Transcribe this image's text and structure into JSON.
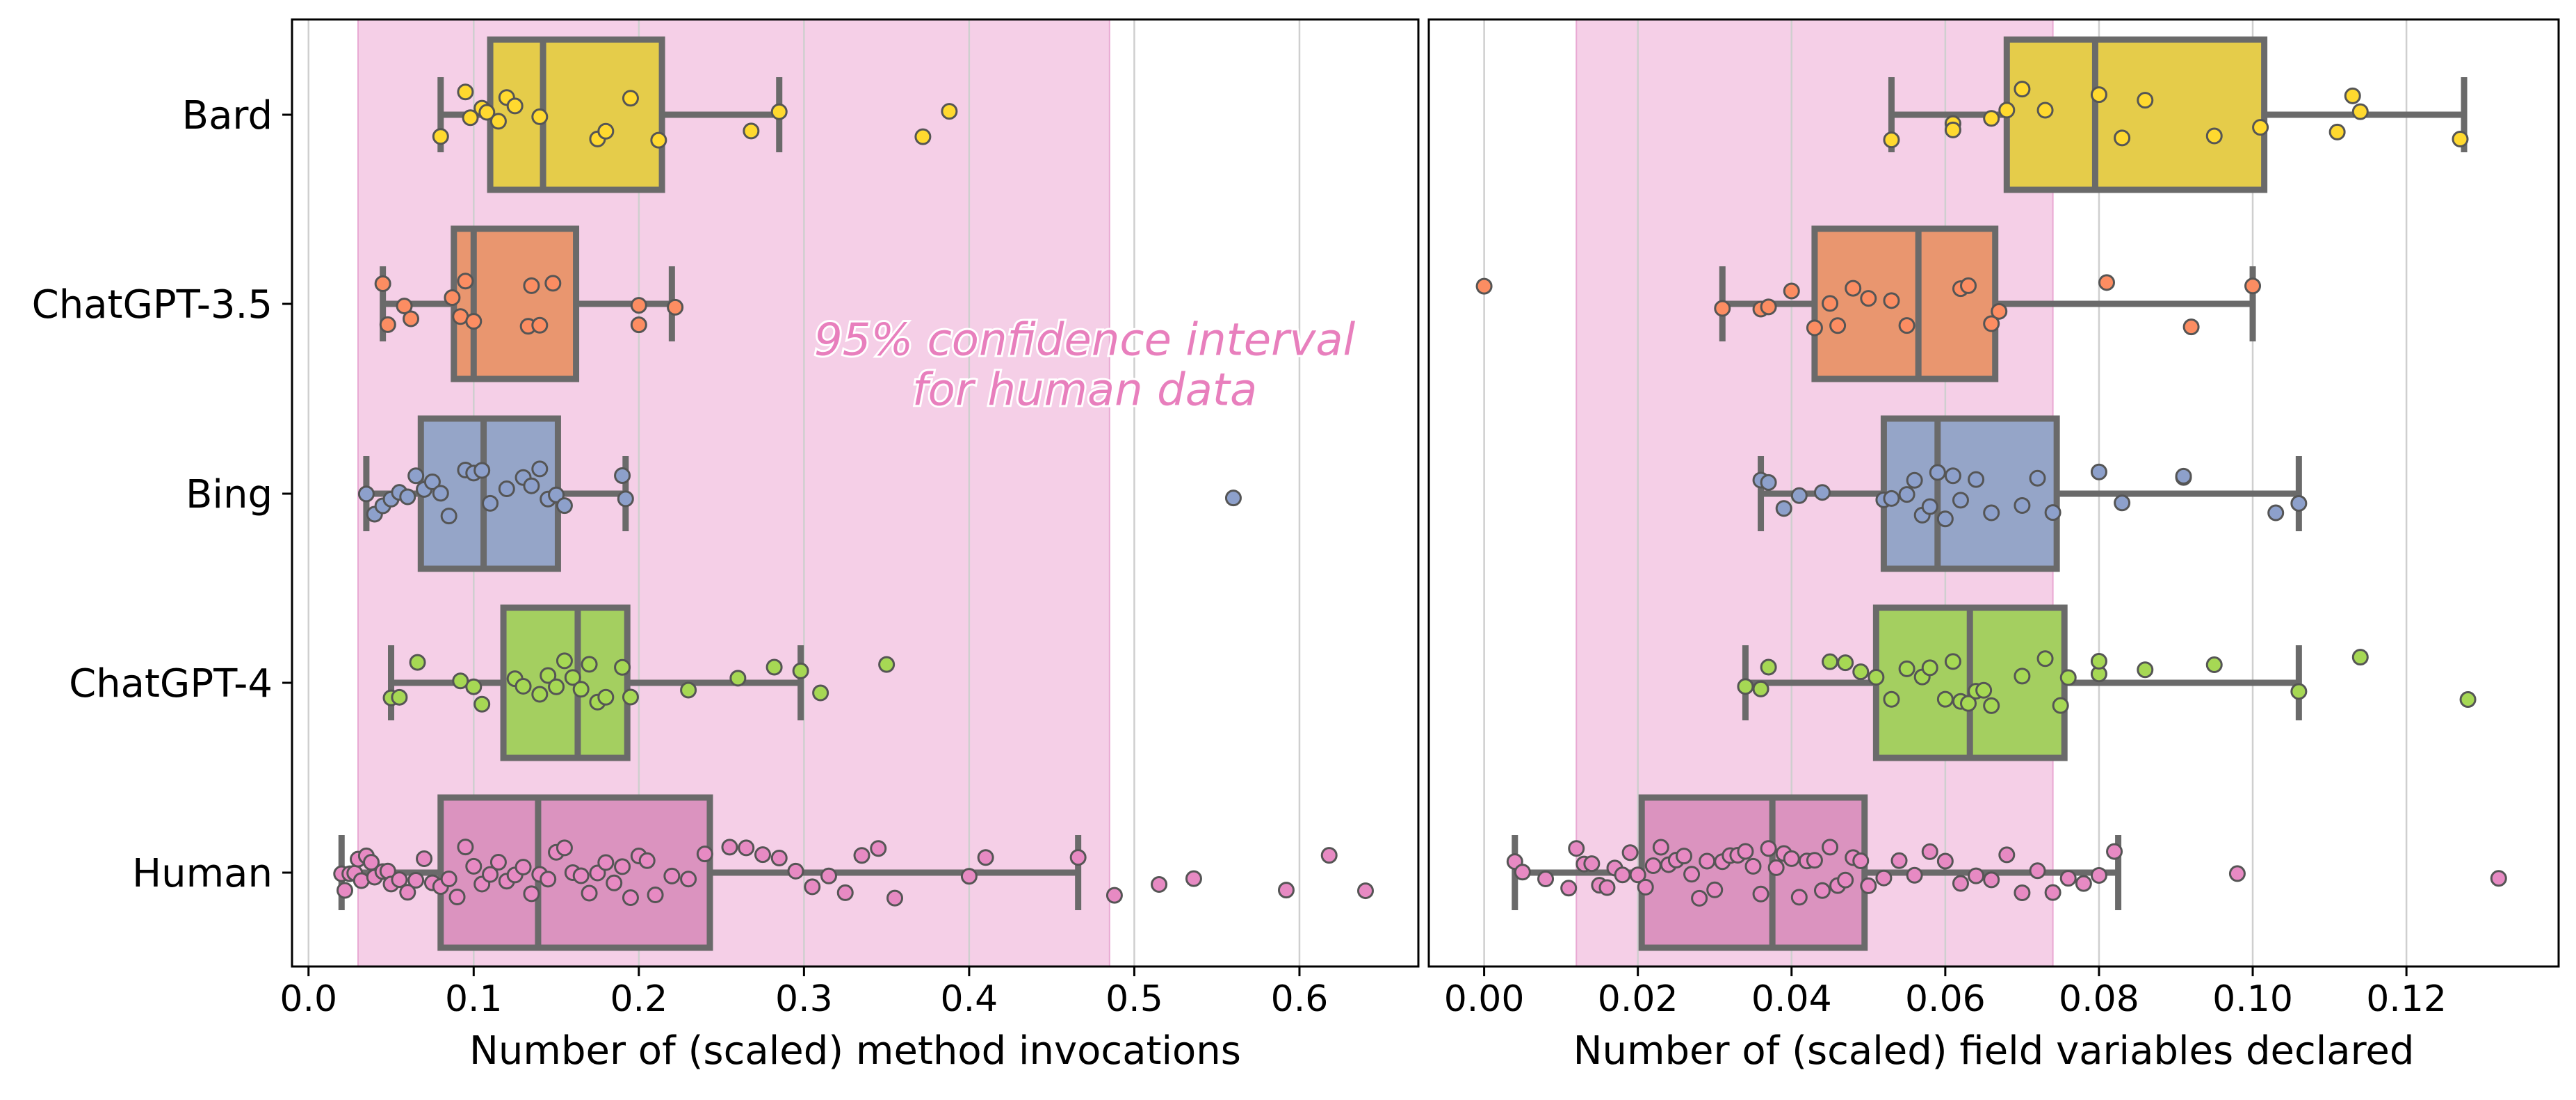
{
  "chart_data": [
    {
      "type": "box",
      "orientation": "horizontal",
      "xlabel": "Number of (scaled) method invocations",
      "ylabel": "",
      "xlim": [
        -0.01,
        0.672
      ],
      "xticks": [
        0.0,
        0.1,
        0.2,
        0.3,
        0.4,
        0.5,
        0.6
      ],
      "xtick_labels": [
        "0.0",
        "0.1",
        "0.2",
        "0.3",
        "0.4",
        "0.5",
        "0.6"
      ],
      "grid": "vertical",
      "categories": [
        "Bard",
        "ChatGPT-3.5",
        "Bing",
        "ChatGPT-4",
        "Human"
      ],
      "shaded_band": {
        "from": 0.03,
        "to": 0.485,
        "color": "#f5cfe7"
      },
      "annotation": {
        "lines": [
          "95% confidence interval",
          "for human data"
        ],
        "x": 0.47,
        "row": 1.27,
        "color": "#e87fbd"
      },
      "boxes": [
        {
          "category": "Bard",
          "color": "#e5cc4a",
          "point_color": "#ffd92f",
          "whisker_low": 0.08,
          "q1": 0.11,
          "median": 0.142,
          "q3": 0.214,
          "whisker_high": 0.285,
          "points": [
            0.08,
            0.095,
            0.098,
            0.105,
            0.108,
            0.115,
            0.12,
            0.125,
            0.14,
            0.175,
            0.18,
            0.195,
            0.212,
            0.268,
            0.285,
            0.372,
            0.388
          ]
        },
        {
          "category": "ChatGPT-3.5",
          "color": "#e9966f",
          "point_color": "#fc8d62",
          "whisker_low": 0.045,
          "q1": 0.088,
          "median": 0.1,
          "q3": 0.162,
          "whisker_high": 0.22,
          "points": [
            0.045,
            0.048,
            0.058,
            0.062,
            0.087,
            0.092,
            0.095,
            0.1,
            0.133,
            0.135,
            0.14,
            0.148,
            0.2,
            0.2,
            0.222
          ]
        },
        {
          "category": "Bing",
          "color": "#95a5c8",
          "point_color": "#8da0cb",
          "whisker_low": 0.035,
          "q1": 0.068,
          "median": 0.106,
          "q3": 0.151,
          "whisker_high": 0.192,
          "points": [
            0.035,
            0.04,
            0.045,
            0.05,
            0.055,
            0.06,
            0.065,
            0.07,
            0.075,
            0.08,
            0.085,
            0.095,
            0.1,
            0.105,
            0.11,
            0.12,
            0.13,
            0.135,
            0.14,
            0.145,
            0.15,
            0.155,
            0.19,
            0.192,
            0.56
          ]
        },
        {
          "category": "ChatGPT-4",
          "color": "#a4cf60",
          "point_color": "#a6d854",
          "whisker_low": 0.05,
          "q1": 0.118,
          "median": 0.163,
          "q3": 0.193,
          "whisker_high": 0.298,
          "points": [
            0.05,
            0.055,
            0.066,
            0.092,
            0.1,
            0.105,
            0.125,
            0.13,
            0.14,
            0.145,
            0.15,
            0.155,
            0.16,
            0.165,
            0.17,
            0.175,
            0.18,
            0.19,
            0.195,
            0.23,
            0.26,
            0.282,
            0.298,
            0.31,
            0.35
          ]
        },
        {
          "category": "Human",
          "color": "#db93bf",
          "point_color": "#e78ac3",
          "whisker_low": 0.02,
          "q1": 0.08,
          "median": 0.139,
          "q3": 0.243,
          "whisker_high": 0.466,
          "points": [
            0.02,
            0.022,
            0.025,
            0.028,
            0.03,
            0.032,
            0.035,
            0.038,
            0.04,
            0.045,
            0.048,
            0.05,
            0.055,
            0.06,
            0.065,
            0.07,
            0.075,
            0.08,
            0.085,
            0.09,
            0.095,
            0.1,
            0.105,
            0.11,
            0.115,
            0.12,
            0.125,
            0.13,
            0.135,
            0.14,
            0.145,
            0.15,
            0.155,
            0.16,
            0.165,
            0.17,
            0.175,
            0.18,
            0.185,
            0.19,
            0.195,
            0.2,
            0.205,
            0.21,
            0.22,
            0.23,
            0.24,
            0.255,
            0.265,
            0.275,
            0.285,
            0.295,
            0.305,
            0.315,
            0.325,
            0.335,
            0.345,
            0.355,
            0.4,
            0.41,
            0.466,
            0.488,
            0.515,
            0.536,
            0.592,
            0.618,
            0.64
          ]
        }
      ]
    },
    {
      "type": "box",
      "orientation": "horizontal",
      "xlabel": "Number of (scaled) field variables declared",
      "ylabel": "",
      "xlim": [
        -0.0072,
        0.1398
      ],
      "xticks": [
        0.0,
        0.02,
        0.04,
        0.06,
        0.08,
        0.1,
        0.12
      ],
      "xtick_labels": [
        "0.00",
        "0.02",
        "0.04",
        "0.06",
        "0.08",
        "0.10",
        "0.12"
      ],
      "grid": "vertical",
      "categories": [
        "Bard",
        "ChatGPT-3.5",
        "Bing",
        "ChatGPT-4",
        "Human"
      ],
      "shaded_band": {
        "from": 0.012,
        "to": 0.074,
        "color": "#f5cfe7"
      },
      "boxes": [
        {
          "category": "Bard",
          "color": "#e5cc4a",
          "point_color": "#ffd92f",
          "whisker_low": 0.053,
          "q1": 0.068,
          "median": 0.0795,
          "q3": 0.1015,
          "whisker_high": 0.1275,
          "points": [
            0.053,
            0.061,
            0.061,
            0.066,
            0.068,
            0.07,
            0.073,
            0.08,
            0.083,
            0.086,
            0.095,
            0.101,
            0.111,
            0.113,
            0.114,
            0.127
          ]
        },
        {
          "category": "ChatGPT-3.5",
          "color": "#e9966f",
          "point_color": "#fc8d62",
          "whisker_low": 0.031,
          "q1": 0.043,
          "median": 0.0565,
          "q3": 0.0665,
          "whisker_high": 0.1,
          "points": [
            0.0,
            0.031,
            0.036,
            0.037,
            0.04,
            0.043,
            0.045,
            0.046,
            0.048,
            0.05,
            0.053,
            0.055,
            0.062,
            0.063,
            0.066,
            0.067,
            0.081,
            0.092,
            0.1
          ]
        },
        {
          "category": "Bing",
          "color": "#95a5c8",
          "point_color": "#8da0cb",
          "whisker_low": 0.036,
          "q1": 0.052,
          "median": 0.059,
          "q3": 0.0745,
          "whisker_high": 0.106,
          "points": [
            0.036,
            0.037,
            0.039,
            0.041,
            0.044,
            0.052,
            0.053,
            0.055,
            0.056,
            0.057,
            0.058,
            0.059,
            0.06,
            0.061,
            0.062,
            0.064,
            0.066,
            0.07,
            0.072,
            0.074,
            0.08,
            0.083,
            0.091,
            0.091,
            0.103,
            0.106
          ]
        },
        {
          "category": "ChatGPT-4",
          "color": "#a4cf60",
          "point_color": "#a6d854",
          "whisker_low": 0.034,
          "q1": 0.051,
          "median": 0.0632,
          "q3": 0.0755,
          "whisker_high": 0.106,
          "points": [
            0.034,
            0.036,
            0.037,
            0.045,
            0.047,
            0.049,
            0.051,
            0.053,
            0.055,
            0.057,
            0.058,
            0.06,
            0.061,
            0.062,
            0.063,
            0.064,
            0.065,
            0.066,
            0.07,
            0.073,
            0.075,
            0.076,
            0.08,
            0.08,
            0.086,
            0.095,
            0.106,
            0.114,
            0.128
          ]
        },
        {
          "category": "Human",
          "color": "#db93bf",
          "point_color": "#e78ac3",
          "whisker_low": 0.004,
          "q1": 0.0205,
          "median": 0.0375,
          "q3": 0.0495,
          "whisker_high": 0.0825,
          "points": [
            0.004,
            0.005,
            0.008,
            0.011,
            0.012,
            0.013,
            0.014,
            0.015,
            0.016,
            0.017,
            0.018,
            0.019,
            0.02,
            0.021,
            0.022,
            0.023,
            0.024,
            0.025,
            0.026,
            0.027,
            0.028,
            0.029,
            0.03,
            0.031,
            0.032,
            0.033,
            0.034,
            0.035,
            0.036,
            0.037,
            0.038,
            0.039,
            0.04,
            0.041,
            0.042,
            0.043,
            0.044,
            0.045,
            0.046,
            0.047,
            0.048,
            0.049,
            0.05,
            0.052,
            0.054,
            0.056,
            0.058,
            0.06,
            0.062,
            0.064,
            0.066,
            0.068,
            0.07,
            0.072,
            0.074,
            0.076,
            0.078,
            0.08,
            0.082,
            0.098,
            0.132
          ]
        }
      ]
    }
  ]
}
